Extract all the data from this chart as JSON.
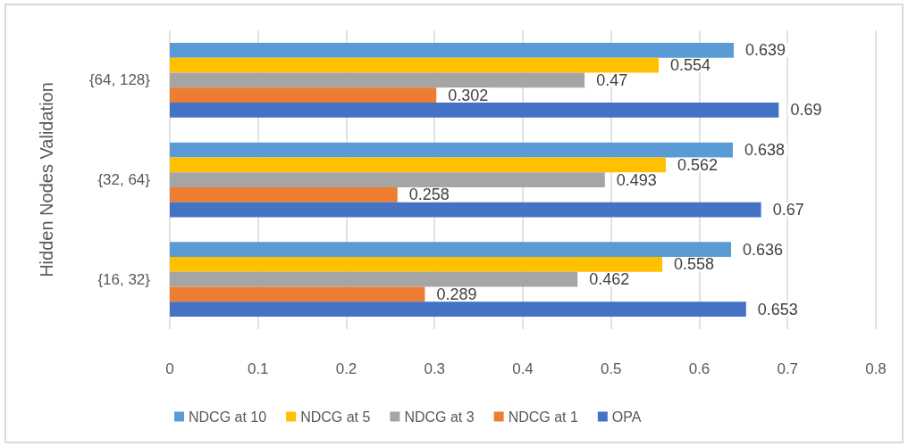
{
  "chart_data": {
    "type": "bar",
    "orientation": "horizontal",
    "ylabel": "Hidden Nodes Validation",
    "categories": [
      "{64, 128}",
      "{32, 64}",
      "{16, 32}"
    ],
    "series": [
      {
        "name": "NDCG at 10",
        "color": "#5b9bd5",
        "values": [
          0.639,
          0.638,
          0.636
        ]
      },
      {
        "name": "NDCG at 5",
        "color": "#ffc000",
        "values": [
          0.554,
          0.562,
          0.558
        ]
      },
      {
        "name": "NDCG at 3",
        "color": "#a5a5a5",
        "values": [
          0.47,
          0.493,
          0.462
        ]
      },
      {
        "name": "NDCG at 1",
        "color": "#ed7d31",
        "values": [
          0.302,
          0.258,
          0.289
        ]
      },
      {
        "name": "OPA",
        "color": "#4472c4",
        "values": [
          0.69,
          0.67,
          0.653
        ]
      }
    ],
    "xlim": [
      0,
      0.8
    ],
    "xticks": [
      0,
      0.1,
      0.2,
      0.3,
      0.4,
      0.5,
      0.6,
      0.7,
      0.8
    ],
    "grid": "x",
    "legend": "bottom",
    "data_labels": true
  }
}
